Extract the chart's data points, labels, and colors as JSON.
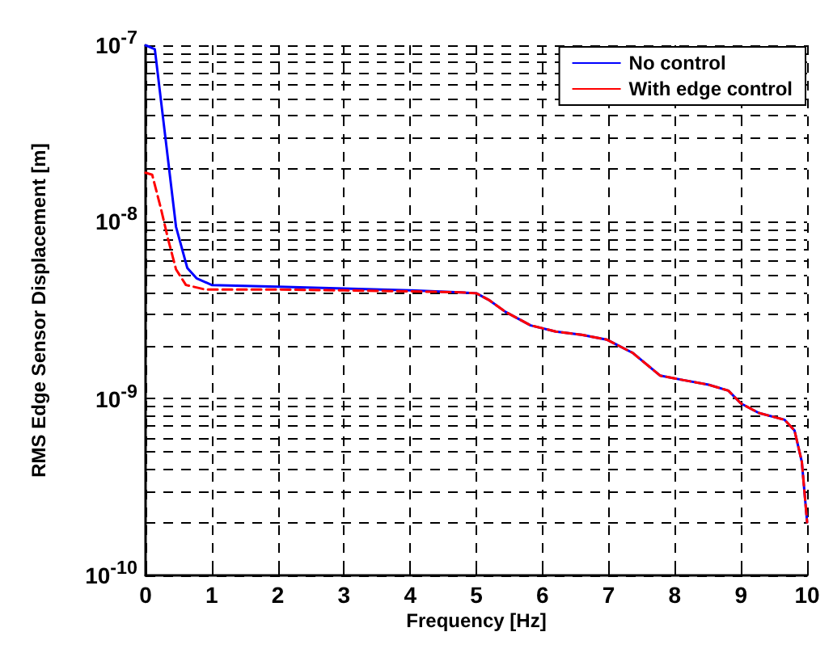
{
  "chart_data": {
    "type": "line",
    "xlabel": "Frequency [Hz]",
    "ylabel": "RMS Edge Sensor Displacement [m]",
    "log": "y",
    "grid": true,
    "legend": "top right",
    "line_style": "solid",
    "marker": "none",
    "xlim": [
      0,
      10
    ],
    "xticks": [
      0,
      1,
      2,
      3,
      4,
      5,
      6,
      7,
      8,
      9,
      10
    ],
    "ylim": [
      1e-10,
      1e-07
    ],
    "yticks": [
      {
        "value": 1e-10,
        "label": "10$^{-10}$"
      },
      {
        "value": 2e-10,
        "label": null
      },
      {
        "value": 3e-10,
        "label": null
      },
      {
        "value": 4e-10,
        "label": null
      },
      {
        "value": 5e-10,
        "label": null
      },
      {
        "value": 6e-10,
        "label": null
      },
      {
        "value": 7e-10,
        "label": null
      },
      {
        "value": 8e-10,
        "label": null
      },
      {
        "value": 9e-10,
        "label": null
      },
      {
        "value": 1e-09,
        "label": "10$^{-9}$"
      },
      {
        "value": 2e-09,
        "label": null
      },
      {
        "value": 3e-09,
        "label": null
      },
      {
        "value": 4e-09,
        "label": null
      },
      {
        "value": 5e-09,
        "label": null
      },
      {
        "value": 6e-09,
        "label": null
      },
      {
        "value": 7e-09,
        "label": null
      },
      {
        "value": 8e-09,
        "label": null
      },
      {
        "value": 9e-09,
        "label": null
      },
      {
        "value": 1e-08,
        "label": "10$^{-8}$"
      },
      {
        "value": 2e-08,
        "label": null
      },
      {
        "value": 3e-08,
        "label": null
      },
      {
        "value": 4e-08,
        "label": null
      },
      {
        "value": 5e-08,
        "label": null
      },
      {
        "value": 6e-08,
        "label": null
      },
      {
        "value": 7e-08,
        "label": null
      },
      {
        "value": 8e-08,
        "label": null
      },
      {
        "value": 9e-08,
        "label": null
      },
      {
        "value": 1e-07,
        "label": "10$^{-7}$"
      }
    ],
    "series": [
      {
        "name": "No control",
        "color": "#0000ff",
        "x": [
          0,
          0.14,
          0.3,
          0.46,
          0.63,
          0.77,
          1.0,
          2.0,
          3.0,
          4.0,
          4.75,
          5.0,
          5.2,
          5.44,
          5.82,
          6.2,
          6.59,
          6.97,
          7.36,
          7.78,
          8.1,
          8.51,
          8.81,
          9.0,
          9.27,
          9.66,
          9.81,
          9.92,
          10.0
        ],
        "values": [
          1e-07,
          9.5e-08,
          3e-08,
          9.4e-09,
          5.5e-09,
          4.8e-09,
          4.4e-09,
          4.3e-09,
          4.2e-09,
          4.1e-09,
          4e-09,
          3.95e-09,
          3.6e-09,
          3.1e-09,
          2.6e-09,
          2.4e-09,
          2.3e-09,
          2.16e-09,
          1.82e-09,
          1.35e-09,
          1.28e-09,
          1.2e-09,
          1.11e-09,
          9.4e-10,
          8.3e-10,
          7.6e-10,
          6.6e-10,
          4.4e-10,
          2e-10
        ]
      },
      {
        "name": "With edge control",
        "color": "#ff0000",
        "x": [
          0,
          0.1,
          0.23,
          0.34,
          0.46,
          0.61,
          0.9,
          2.0,
          3.0,
          4.0,
          4.75,
          5.0,
          5.2,
          5.44,
          5.82,
          6.2,
          6.59,
          6.97,
          7.36,
          7.78,
          8.1,
          8.51,
          8.81,
          9.0,
          9.27,
          9.66,
          9.81,
          9.92,
          10.0
        ],
        "values": [
          1.9e-08,
          1.85e-08,
          1.2e-08,
          8e-09,
          5.4e-09,
          4.4e-09,
          4.15e-09,
          4.15e-09,
          4.1e-09,
          4.05e-09,
          4e-09,
          3.95e-09,
          3.6e-09,
          3.1e-09,
          2.6e-09,
          2.4e-09,
          2.3e-09,
          2.16e-09,
          1.82e-09,
          1.35e-09,
          1.28e-09,
          1.2e-09,
          1.11e-09,
          9.4e-10,
          8.3e-10,
          7.6e-10,
          6.6e-10,
          4.4e-10,
          2e-10
        ],
        "line_style": "dashed"
      }
    ]
  }
}
